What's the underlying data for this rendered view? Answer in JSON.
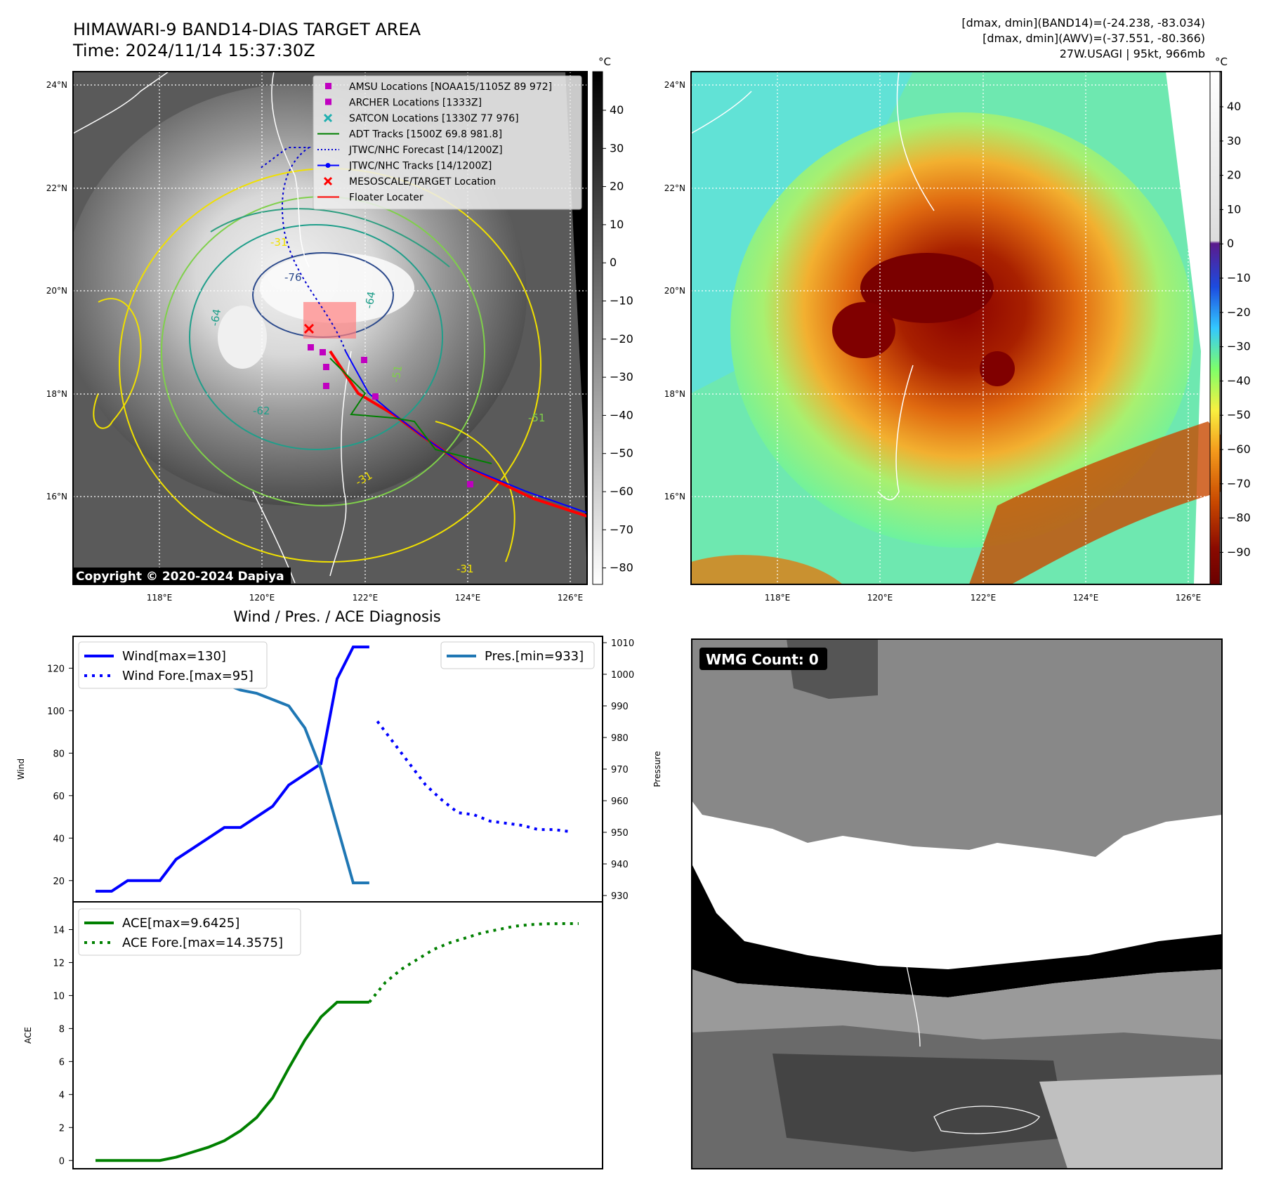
{
  "header": {
    "title": "HIMAWARI-9 BAND14-DIAS TARGET AREA",
    "time": "Time: 2024/11/14 15:37:30Z",
    "stat1": "[dmax, dmin](BAND14)=(-24.238, -83.034)",
    "stat2": "[dmax, dmin](AWV)=(-37.551, -80.366)",
    "storm": "27W.USAGI | 95kt, 966mb"
  },
  "map": {
    "lat_labels": [
      "24°N",
      "22°N",
      "20°N",
      "18°N",
      "16°N"
    ],
    "lon_labels": [
      "118°E",
      "120°E",
      "122°E",
      "124°E",
      "126°E"
    ],
    "copyright": "Copyright © 2020-2024 Dapiya",
    "contour_labels": [
      "-76",
      "-64",
      "-64",
      "-51",
      "-51",
      "-31",
      "-31",
      "-31",
      "-62"
    ],
    "legend": [
      {
        "label": "AMSU Locations [NOAA15/1105Z 89 972]",
        "color": "#c000c0",
        "kind": "square"
      },
      {
        "label": "ARCHER Locations [1333Z]",
        "color": "#c000c0",
        "kind": "square"
      },
      {
        "label": "SATCON Locations [1330Z 77 976]",
        "color": "#20b0b0",
        "kind": "x"
      },
      {
        "label": "ADT Tracks [1500Z 69.8 981.8]",
        "color": "#008000",
        "kind": "line"
      },
      {
        "label": "JTWC/NHC Forecast [14/1200Z]",
        "color": "#0000d0",
        "kind": "dotted"
      },
      {
        "label": "JTWC/NHC Tracks [14/1200Z]",
        "color": "#0000ff",
        "kind": "line-dot"
      },
      {
        "label": "MESOSCALE/TARGET Location",
        "color": "#ff0000",
        "kind": "x"
      },
      {
        "label": "Floater Locater",
        "color": "#ff0000",
        "kind": "line"
      }
    ],
    "colorbar_gray": {
      "unit": "°C",
      "ticks": [
        "40",
        "30",
        "20",
        "10",
        "0",
        "−10",
        "−20",
        "−30",
        "−40",
        "−50",
        "−60",
        "−70",
        "−80"
      ]
    },
    "colorbar_color": {
      "unit": "°C",
      "ticks": [
        "40",
        "30",
        "20",
        "10",
        "0",
        "−10",
        "−20",
        "−30",
        "−40",
        "−50",
        "−60",
        "−70",
        "−80",
        "−90"
      ]
    }
  },
  "panel_bottom_right": {
    "badge": "WMG Count: 0"
  },
  "chart_data": [
    {
      "type": "line",
      "title": "Wind / Pres. / ACE Diagnosis",
      "ylabel": "Wind",
      "ylabel_right": "Pressure",
      "ylim": [
        10,
        135
      ],
      "ylim_right": [
        928,
        1012
      ],
      "xlim": [
        0,
        30
      ],
      "yticks": [
        20,
        40,
        60,
        80,
        100,
        120
      ],
      "yticks_right": [
        930,
        940,
        950,
        960,
        970,
        980,
        990,
        1000,
        1010
      ],
      "series": [
        {
          "name": "Wind[max=130]",
          "color": "#0000ff",
          "style": "solid",
          "x": [
            0,
            1,
            2,
            3,
            4,
            5,
            6,
            7,
            8,
            9,
            10,
            11,
            12,
            13,
            14,
            15,
            16,
            17
          ],
          "values": [
            15,
            15,
            20,
            20,
            20,
            30,
            35,
            40,
            45,
            45,
            50,
            55,
            65,
            70,
            75,
            115,
            130,
            130
          ]
        },
        {
          "name": "Wind Fore.[max=95]",
          "color": "#0000ff",
          "style": "dotted",
          "x": [
            17.5,
            18.5,
            19.5,
            20.5,
            21.5,
            22.5,
            23.5,
            24.5,
            25.5,
            26.5,
            27.5,
            28.5,
            29.5
          ],
          "values": [
            95,
            85,
            75,
            65,
            58,
            52,
            51,
            48,
            47,
            46,
            44,
            44,
            43
          ]
        },
        {
          "name": "Pres.[min=933]",
          "color": "#1f77b4",
          "style": "solid",
          "axis": "right",
          "x": [
            0,
            1,
            2,
            3,
            4,
            5,
            6,
            7,
            8,
            9,
            10,
            11,
            12,
            13,
            14,
            15,
            16,
            17
          ],
          "values": [
            1009,
            1009,
            1008,
            1008,
            1006,
            1004,
            1002,
            998,
            997,
            995,
            994,
            992,
            990,
            983,
            970,
            952,
            934,
            934
          ]
        }
      ]
    },
    {
      "type": "line",
      "ylabel": "ACE",
      "ylim": [
        -0.5,
        15
      ],
      "xlim": [
        0,
        30
      ],
      "yticks": [
        0,
        2,
        4,
        6,
        8,
        10,
        12,
        14
      ],
      "series": [
        {
          "name": "ACE[max=9.6425]",
          "color": "#008000",
          "style": "solid",
          "x": [
            0,
            1,
            2,
            3,
            4,
            5,
            6,
            7,
            8,
            9,
            10,
            11,
            12,
            13,
            14,
            15,
            16,
            17
          ],
          "values": [
            0,
            0,
            0,
            0,
            0,
            0.2,
            0.5,
            0.8,
            1.2,
            1.8,
            2.6,
            3.8,
            5.6,
            7.3,
            8.7,
            9.6,
            9.6,
            9.6
          ]
        },
        {
          "name": "ACE Fore.[max=14.3575]",
          "color": "#008000",
          "style": "dotted",
          "x": [
            17,
            18,
            19,
            20,
            21,
            22,
            23,
            24,
            25,
            26,
            27,
            28,
            29,
            30
          ],
          "values": [
            9.6,
            10.8,
            11.6,
            12.2,
            12.8,
            13.2,
            13.5,
            13.8,
            14.0,
            14.2,
            14.3,
            14.35,
            14.36,
            14.36
          ]
        }
      ]
    }
  ]
}
